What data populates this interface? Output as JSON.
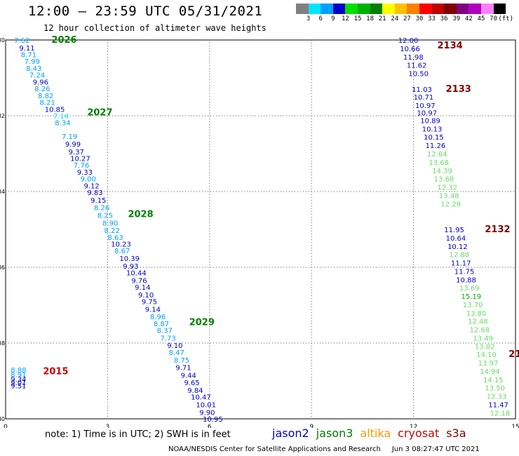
{
  "header": {
    "title": "12:00 — 23:59 UTC 05/31/2021",
    "subtitle": "12 hour collection of altimeter wave heights"
  },
  "colorbar": {
    "colors": [
      "#808080",
      "#00e5ff",
      "#00a0ff",
      "#0000cc",
      "#00e000",
      "#00b000",
      "#008000",
      "#ffff00",
      "#ffc000",
      "#ff8000",
      "#ff0000",
      "#c00000",
      "#800000",
      "#800080",
      "#b000c0",
      "#ff80ff",
      "#000000"
    ],
    "labels": [
      "3",
      "6",
      "9",
      "12",
      "15",
      "18",
      "21",
      "24",
      "27",
      "30",
      "33",
      "36",
      "39",
      "42",
      "45",
      "70",
      "(ft)"
    ]
  },
  "chart_data": {
    "type": "scatter",
    "xaxis": {
      "ticks": [
        0,
        3,
        6,
        9,
        12,
        15
      ],
      "range": [
        0,
        15
      ]
    },
    "yaxis": {
      "ticks": [
        -30,
        -32,
        -34,
        -36,
        -38,
        -40
      ],
      "tick_labels": [
        "30",
        "32",
        "34",
        "36",
        "38",
        "40"
      ],
      "range": [
        -40,
        -30
      ]
    },
    "grid": true,
    "series_colors": {
      "jason2": "#0000cc",
      "jason3": "#008000",
      "altika": "#ff9900",
      "cryosat": "#cc0000",
      "s3a": "#800000"
    },
    "passes": [
      {
        "label": "2026",
        "satellite": "jason3",
        "x": 1.35,
        "y": -30.0
      },
      {
        "label": "2027",
        "satellite": "jason3",
        "x": 2.4,
        "y": -31.92
      },
      {
        "label": "2028",
        "satellite": "jason3",
        "x": 3.6,
        "y": -34.6
      },
      {
        "label": "2029",
        "satellite": "jason3",
        "x": 5.4,
        "y": -37.45
      },
      {
        "label": "2015",
        "satellite": "cryosat",
        "x": 1.1,
        "y": -38.75
      },
      {
        "label": "2134",
        "satellite": "s3a",
        "x": 12.7,
        "y": -30.15
      },
      {
        "label": "2133",
        "satellite": "s3a",
        "x": 12.95,
        "y": -31.3
      },
      {
        "label": "2132",
        "satellite": "s3a",
        "x": 14.1,
        "y": -35.0
      },
      {
        "label": "21",
        "satellite": "s3a",
        "x": 14.8,
        "y": -38.3
      }
    ],
    "points": [
      {
        "x": 0.25,
        "y": -30.0,
        "v": "7.62",
        "c": "#00a0ff"
      },
      {
        "x": 0.4,
        "y": -30.2,
        "v": "9.11",
        "c": "#0000cc"
      },
      {
        "x": 0.45,
        "y": -30.38,
        "v": "8.71",
        "c": "#00a0ff"
      },
      {
        "x": 0.55,
        "y": -30.56,
        "v": "7.99",
        "c": "#00a0ff"
      },
      {
        "x": 0.6,
        "y": -30.74,
        "v": "8.43",
        "c": "#00a0ff"
      },
      {
        "x": 0.7,
        "y": -30.92,
        "v": "7.24",
        "c": "#00a0ff"
      },
      {
        "x": 0.8,
        "y": -31.1,
        "v": "9.96",
        "c": "#0000cc"
      },
      {
        "x": 0.85,
        "y": -31.28,
        "v": "8.26",
        "c": "#00a0ff"
      },
      {
        "x": 0.95,
        "y": -31.46,
        "v": "8.82",
        "c": "#00a0ff"
      },
      {
        "x": 1.0,
        "y": -31.64,
        "v": "8.21",
        "c": "#00a0ff"
      },
      {
        "x": 1.15,
        "y": -31.82,
        "v": "10.85",
        "c": "#0000cc"
      },
      {
        "x": 1.4,
        "y": -32.0,
        "v": "7.14",
        "c": "#00e5ff"
      },
      {
        "x": 1.45,
        "y": -32.18,
        "v": "8.34",
        "c": "#00a0ff"
      },
      {
        "x": 1.65,
        "y": -32.54,
        "v": "7.19",
        "c": "#00a0ff"
      },
      {
        "x": 1.75,
        "y": -32.74,
        "v": "9.99",
        "c": "#0000cc"
      },
      {
        "x": 1.85,
        "y": -32.94,
        "v": "9.37",
        "c": "#0000cc"
      },
      {
        "x": 1.9,
        "y": -33.12,
        "v": "10.27",
        "c": "#0000cc"
      },
      {
        "x": 2.0,
        "y": -33.3,
        "v": "7.76",
        "c": "#00a0ff"
      },
      {
        "x": 2.1,
        "y": -33.48,
        "v": "9.33",
        "c": "#0000cc"
      },
      {
        "x": 2.2,
        "y": -33.66,
        "v": "9.00",
        "c": "#00a0ff"
      },
      {
        "x": 2.3,
        "y": -33.84,
        "v": "9.12",
        "c": "#0000cc"
      },
      {
        "x": 2.4,
        "y": -34.02,
        "v": "9.83",
        "c": "#0000cc"
      },
      {
        "x": 2.5,
        "y": -34.22,
        "v": "9.15",
        "c": "#0000cc"
      },
      {
        "x": 2.6,
        "y": -34.42,
        "v": "8.26",
        "c": "#00a0ff"
      },
      {
        "x": 2.7,
        "y": -34.62,
        "v": "8.25",
        "c": "#00a0ff"
      },
      {
        "x": 2.85,
        "y": -34.82,
        "v": "8.90",
        "c": "#00a0ff"
      },
      {
        "x": 2.9,
        "y": -35.02,
        "v": "8.22",
        "c": "#00a0ff"
      },
      {
        "x": 3.0,
        "y": -35.2,
        "v": "8.63",
        "c": "#00a0ff"
      },
      {
        "x": 3.1,
        "y": -35.38,
        "v": "10.23",
        "c": "#0000cc"
      },
      {
        "x": 3.2,
        "y": -35.56,
        "v": "8.67",
        "c": "#00a0ff"
      },
      {
        "x": 3.35,
        "y": -35.76,
        "v": "10.39",
        "c": "#0000cc"
      },
      {
        "x": 3.45,
        "y": -35.96,
        "v": "9.93",
        "c": "#0000cc"
      },
      {
        "x": 3.55,
        "y": -36.14,
        "v": "10.44",
        "c": "#0000cc"
      },
      {
        "x": 3.7,
        "y": -36.34,
        "v": "9.76",
        "c": "#0000cc"
      },
      {
        "x": 3.8,
        "y": -36.52,
        "v": "9.14",
        "c": "#0000cc"
      },
      {
        "x": 3.9,
        "y": -36.72,
        "v": "9.10",
        "c": "#0000cc"
      },
      {
        "x": 4.0,
        "y": -36.9,
        "v": "9.75",
        "c": "#0000cc"
      },
      {
        "x": 4.1,
        "y": -37.1,
        "v": "9.14",
        "c": "#0000cc"
      },
      {
        "x": 4.25,
        "y": -37.3,
        "v": "8.96",
        "c": "#00a0ff"
      },
      {
        "x": 4.35,
        "y": -37.48,
        "v": "8.87",
        "c": "#00a0ff"
      },
      {
        "x": 4.45,
        "y": -37.66,
        "v": "8.37",
        "c": "#00a0ff"
      },
      {
        "x": 4.55,
        "y": -37.86,
        "v": "7.73",
        "c": "#00a0ff"
      },
      {
        "x": 4.75,
        "y": -38.06,
        "v": "9.10",
        "c": "#0000cc"
      },
      {
        "x": 4.8,
        "y": -38.24,
        "v": "8.47",
        "c": "#00a0ff"
      },
      {
        "x": 4.95,
        "y": -38.44,
        "v": "8.75",
        "c": "#00a0ff"
      },
      {
        "x": 5.0,
        "y": -38.64,
        "v": "9.71",
        "c": "#0000cc"
      },
      {
        "x": 5.15,
        "y": -38.84,
        "v": "9.44",
        "c": "#0000cc"
      },
      {
        "x": 5.25,
        "y": -39.04,
        "v": "9.65",
        "c": "#0000cc"
      },
      {
        "x": 5.35,
        "y": -39.24,
        "v": "9.84",
        "c": "#0000cc"
      },
      {
        "x": 5.45,
        "y": -39.42,
        "v": "10.47",
        "c": "#0000cc"
      },
      {
        "x": 5.6,
        "y": -39.62,
        "v": "10.01",
        "c": "#0000cc"
      },
      {
        "x": 5.7,
        "y": -39.82,
        "v": "9.90",
        "c": "#0000cc"
      },
      {
        "x": 5.8,
        "y": -40.0,
        "v": "10.95",
        "c": "#0000cc"
      },
      {
        "x": 0.15,
        "y": -38.7,
        "v": "8.88",
        "c": "#00a0ff"
      },
      {
        "x": 0.15,
        "y": -38.82,
        "v": "8.91",
        "c": "#00a0ff"
      },
      {
        "x": 0.15,
        "y": -38.94,
        "v": "9.34",
        "c": "#0000cc"
      },
      {
        "x": 0.15,
        "y": -39.04,
        "v": "9.01",
        "c": "#0000cc"
      },
      {
        "x": 0.15,
        "y": -39.12,
        "v": "9.51",
        "c": "#0000cc"
      },
      {
        "x": 11.55,
        "y": -30.0,
        "v": "12.00",
        "c": "#0000cc"
      },
      {
        "x": 11.6,
        "y": -30.22,
        "v": "10.66",
        "c": "#0000cc"
      },
      {
        "x": 11.7,
        "y": -30.44,
        "v": "11.98",
        "c": "#0000cc"
      },
      {
        "x": 11.8,
        "y": -30.66,
        "v": "11.62",
        "c": "#0000cc"
      },
      {
        "x": 11.85,
        "y": -30.88,
        "v": "10.50",
        "c": "#0000cc"
      },
      {
        "x": 11.95,
        "y": -31.3,
        "v": "11.03",
        "c": "#0000cc"
      },
      {
        "x": 12.0,
        "y": -31.5,
        "v": "10.71",
        "c": "#0000cc"
      },
      {
        "x": 12.05,
        "y": -31.72,
        "v": "10.97",
        "c": "#0000cc"
      },
      {
        "x": 12.1,
        "y": -31.92,
        "v": "10.97",
        "c": "#0000cc"
      },
      {
        "x": 12.2,
        "y": -32.12,
        "v": "10.89",
        "c": "#0000cc"
      },
      {
        "x": 12.25,
        "y": -32.34,
        "v": "10.13",
        "c": "#0000cc"
      },
      {
        "x": 12.3,
        "y": -32.56,
        "v": "10.15",
        "c": "#0000cc"
      },
      {
        "x": 12.35,
        "y": -32.78,
        "v": "11.26",
        "c": "#0000cc"
      },
      {
        "x": 12.4,
        "y": -33.0,
        "v": "12.64",
        "c": "#66dd66"
      },
      {
        "x": 12.45,
        "y": -33.22,
        "v": "13.68",
        "c": "#66dd66"
      },
      {
        "x": 12.55,
        "y": -33.44,
        "v": "14.39",
        "c": "#66dd66"
      },
      {
        "x": 12.6,
        "y": -33.66,
        "v": "13.68",
        "c": "#66dd66"
      },
      {
        "x": 12.7,
        "y": -33.88,
        "v": "12.32",
        "c": "#66dd66"
      },
      {
        "x": 12.75,
        "y": -34.1,
        "v": "13.48",
        "c": "#66dd66"
      },
      {
        "x": 12.8,
        "y": -34.32,
        "v": "12.29",
        "c": "#66dd66"
      },
      {
        "x": 12.9,
        "y": -35.0,
        "v": "11.95",
        "c": "#0000cc"
      },
      {
        "x": 12.95,
        "y": -35.22,
        "v": "10.64",
        "c": "#0000cc"
      },
      {
        "x": 13.0,
        "y": -35.44,
        "v": "10.12",
        "c": "#0000cc"
      },
      {
        "x": 13.05,
        "y": -35.66,
        "v": "12.88",
        "c": "#66dd66"
      },
      {
        "x": 13.1,
        "y": -35.88,
        "v": "11.17",
        "c": "#0000cc"
      },
      {
        "x": 13.2,
        "y": -36.1,
        "v": "11.75",
        "c": "#0000cc"
      },
      {
        "x": 13.25,
        "y": -36.32,
        "v": "10.88",
        "c": "#0000cc"
      },
      {
        "x": 13.35,
        "y": -36.54,
        "v": "13.69",
        "c": "#66dd66"
      },
      {
        "x": 13.4,
        "y": -36.76,
        "v": "15.19",
        "c": "#00b000"
      },
      {
        "x": 13.45,
        "y": -36.98,
        "v": "13.70",
        "c": "#66dd66"
      },
      {
        "x": 13.55,
        "y": -37.2,
        "v": "13.80",
        "c": "#66dd66"
      },
      {
        "x": 13.6,
        "y": -37.42,
        "v": "12.48",
        "c": "#66dd66"
      },
      {
        "x": 13.65,
        "y": -37.64,
        "v": "12.68",
        "c": "#66dd66"
      },
      {
        "x": 13.75,
        "y": -37.86,
        "v": "13.49",
        "c": "#66dd66"
      },
      {
        "x": 13.8,
        "y": -38.08,
        "v": "13.82",
        "c": "#66dd66"
      },
      {
        "x": 13.85,
        "y": -38.3,
        "v": "14.10",
        "c": "#66dd66"
      },
      {
        "x": 13.9,
        "y": -38.52,
        "v": "13.97",
        "c": "#66dd66"
      },
      {
        "x": 13.95,
        "y": -38.74,
        "v": "14.94",
        "c": "#66dd66"
      },
      {
        "x": 14.05,
        "y": -38.96,
        "v": "14.15",
        "c": "#66dd66"
      },
      {
        "x": 14.1,
        "y": -39.18,
        "v": "13.50",
        "c": "#66dd66"
      },
      {
        "x": 14.15,
        "y": -39.4,
        "v": "12.33",
        "c": "#66dd66"
      },
      {
        "x": 14.2,
        "y": -39.62,
        "v": "11.47",
        "c": "#0000cc"
      },
      {
        "x": 14.25,
        "y": -39.84,
        "v": "12.18",
        "c": "#66dd66"
      }
    ]
  },
  "note": "note:  1) Time is in UTC;  2) SWH is in feet",
  "legend": [
    {
      "name": "jason2",
      "color": "#0000cc"
    },
    {
      "name": "jason3",
      "color": "#008000"
    },
    {
      "name": "altika",
      "color": "#ff9900"
    },
    {
      "name": "cryosat",
      "color": "#cc0000"
    },
    {
      "name": "s3a",
      "color": "#800000"
    }
  ],
  "footer": {
    "credit": "NOAA/NESDIS Center for Satellite Applications and Research",
    "timestamp": "Jun  3 08:27:47 UTC 2021"
  }
}
